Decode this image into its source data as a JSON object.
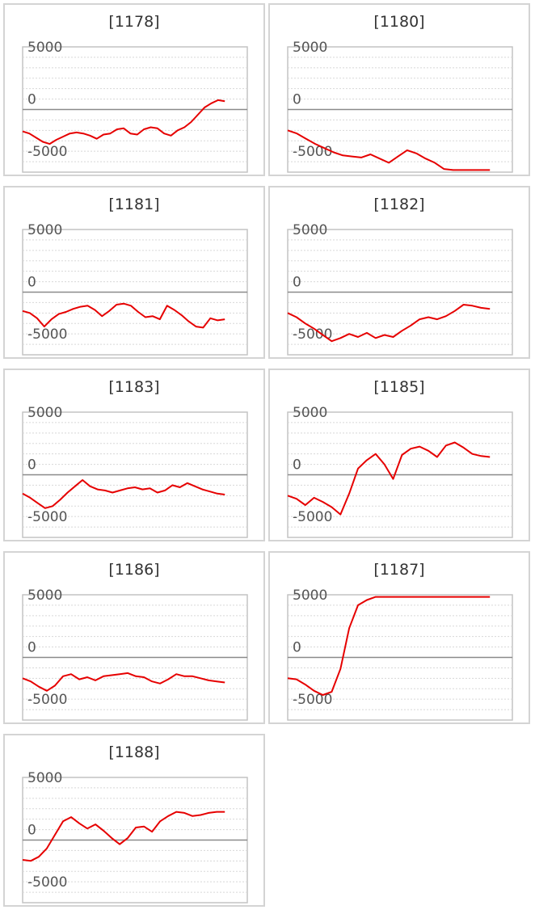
{
  "style": {
    "line_color": "#e60000",
    "zero_line_color": "#8a8a8a",
    "grid_color": "#d8d8d8",
    "frame_color": "#c4c4c4"
  },
  "chart_data": [
    {
      "type": "line",
      "title": "[1178]",
      "ylim": [
        -6000,
        6000
      ],
      "y_ticks": [
        5000,
        0,
        -5000
      ],
      "values": [
        -2100,
        -2300,
        -2700,
        -3100,
        -3300,
        -2900,
        -2600,
        -2300,
        -2200,
        -2300,
        -2500,
        -2800,
        -2400,
        -2300,
        -1900,
        -1800,
        -2300,
        -2400,
        -1900,
        -1700,
        -1800,
        -2300,
        -2500,
        -2000,
        -1700,
        -1200,
        -500,
        200,
        600,
        900,
        800
      ]
    },
    {
      "type": "line",
      "title": "[1180]",
      "ylim": [
        -6000,
        6000
      ],
      "y_ticks": [
        5000,
        0,
        -5000
      ],
      "values": [
        -2000,
        -2300,
        -2800,
        -3300,
        -3700,
        -4100,
        -4400,
        -4500,
        -4600,
        -4300,
        -4700,
        -5100,
        -4500,
        -3900,
        -4200,
        -4700,
        -5100,
        -5700,
        -6000,
        -6000,
        -6000,
        -6000,
        -6000
      ]
    },
    {
      "type": "line",
      "title": "[1181]",
      "ylim": [
        -6000,
        6000
      ],
      "y_ticks": [
        5000,
        0,
        -5000
      ],
      "values": [
        -1800,
        -2000,
        -2500,
        -3300,
        -2600,
        -2100,
        -1900,
        -1600,
        -1400,
        -1300,
        -1700,
        -2300,
        -1800,
        -1200,
        -1100,
        -1300,
        -1900,
        -2400,
        -2300,
        -2600,
        -1300,
        -1700,
        -2200,
        -2800,
        -3300,
        -3400,
        -2500,
        -2700,
        -2600
      ]
    },
    {
      "type": "line",
      "title": "[1182]",
      "ylim": [
        -6000,
        6000
      ],
      "y_ticks": [
        5000,
        0,
        -5000
      ],
      "values": [
        -2000,
        -2400,
        -3000,
        -3500,
        -4100,
        -4700,
        -4400,
        -4000,
        -4300,
        -3900,
        -4400,
        -4100,
        -4300,
        -3700,
        -3200,
        -2600,
        -2400,
        -2600,
        -2300,
        -1800,
        -1200,
        -1300,
        -1500,
        -1600
      ]
    },
    {
      "type": "line",
      "title": "[1183]",
      "ylim": [
        -6000,
        6000
      ],
      "y_ticks": [
        5000,
        0,
        -5000
      ],
      "values": [
        -1800,
        -2200,
        -2700,
        -3200,
        -3000,
        -2400,
        -1700,
        -1100,
        -500,
        -1100,
        -1400,
        -1500,
        -1700,
        -1500,
        -1300,
        -1200,
        -1400,
        -1300,
        -1700,
        -1500,
        -1000,
        -1200,
        -800,
        -1100,
        -1400,
        -1600,
        -1800,
        -1900
      ]
    },
    {
      "type": "line",
      "title": "[1185]",
      "ylim": [
        -6000,
        6000
      ],
      "y_ticks": [
        5000,
        0,
        -5000
      ],
      "values": [
        -2000,
        -2300,
        -2900,
        -2200,
        -2600,
        -3100,
        -3800,
        -1800,
        600,
        1400,
        2000,
        1000,
        -400,
        1900,
        2500,
        2700,
        2300,
        1700,
        2800,
        3100,
        2600,
        2000,
        1800,
        1700
      ]
    },
    {
      "type": "line",
      "title": "[1186]",
      "ylim": [
        -6000,
        6000
      ],
      "y_ticks": [
        5000,
        0,
        -5000
      ],
      "values": [
        -2000,
        -2300,
        -2800,
        -3200,
        -2700,
        -1800,
        -1600,
        -2100,
        -1900,
        -2200,
        -1800,
        -1700,
        -1600,
        -1500,
        -1800,
        -1900,
        -2300,
        -2500,
        -2100,
        -1600,
        -1800,
        -1800,
        -2000,
        -2200,
        -2300,
        -2400
      ]
    },
    {
      "type": "line",
      "title": "[1187]",
      "ylim": [
        -6000,
        6000
      ],
      "y_ticks": [
        5000,
        0,
        -5000
      ],
      "values": [
        -2000,
        -2100,
        -2600,
        -3200,
        -3600,
        -3300,
        -1100,
        2800,
        5000,
        5500,
        5800,
        5800,
        5800,
        5800,
        5800,
        5800,
        5800,
        5800,
        5800,
        5800,
        5800,
        5800,
        5800,
        5800
      ]
    },
    {
      "type": "line",
      "title": "[1188]",
      "ylim": [
        -6000,
        6000
      ],
      "y_ticks": [
        5000,
        0,
        -5000
      ],
      "values": [
        -1900,
        -2000,
        -1600,
        -800,
        500,
        1800,
        2200,
        1600,
        1100,
        1500,
        900,
        200,
        -400,
        200,
        1200,
        1300,
        800,
        1800,
        2300,
        2700,
        2600,
        2300,
        2400,
        2600,
        2700,
        2700
      ]
    }
  ]
}
